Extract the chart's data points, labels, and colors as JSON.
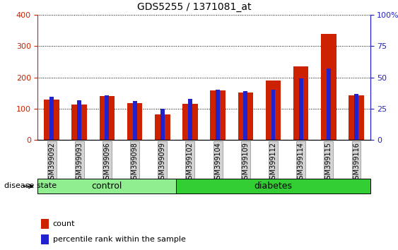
{
  "title": "GDS5255 / 1371081_at",
  "samples": [
    "GSM399092",
    "GSM399093",
    "GSM399096",
    "GSM399098",
    "GSM399099",
    "GSM399102",
    "GSM399104",
    "GSM399109",
    "GSM399112",
    "GSM399114",
    "GSM399115",
    "GSM399116"
  ],
  "red_values": [
    130,
    113,
    140,
    118,
    82,
    115,
    158,
    153,
    190,
    236,
    340,
    143
  ],
  "blue_percentiles": [
    34.5,
    32.0,
    35.8,
    31.3,
    25.0,
    33.0,
    40.5,
    39.3,
    40.5,
    49.3,
    57.0,
    37.0
  ],
  "groups": [
    {
      "label": "control",
      "start": 0,
      "end": 4,
      "color": "#90EE90"
    },
    {
      "label": "diabetes",
      "start": 5,
      "end": 11,
      "color": "#32CD32"
    }
  ],
  "ylim_left": [
    0,
    400
  ],
  "ylim_right": [
    0,
    100
  ],
  "yticks_left": [
    0,
    100,
    200,
    300,
    400
  ],
  "yticks_right": [
    0,
    25,
    50,
    75,
    100
  ],
  "red_color": "#CC2200",
  "blue_color": "#2222CC",
  "plot_bg": "#FFFFFF",
  "left_axis_color": "#CC2200",
  "right_axis_color": "#2222CC",
  "disease_state_label": "disease state",
  "legend_count_label": "count",
  "legend_percentile_label": "percentile rank within the sample"
}
